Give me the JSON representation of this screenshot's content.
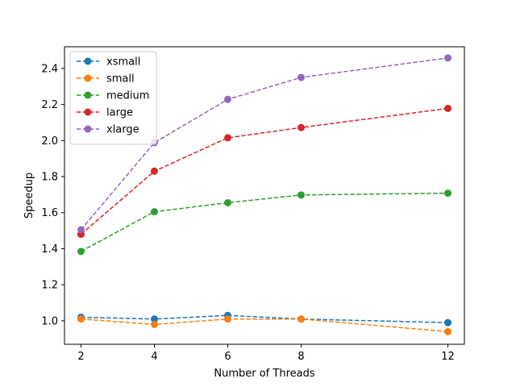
{
  "chart_data": {
    "type": "line",
    "title": "",
    "xlabel": "Number of Threads",
    "ylabel": "Speedup",
    "x": [
      2,
      4,
      6,
      8,
      12
    ],
    "x_tick_labels": [
      "2",
      "4",
      "6",
      "8",
      "12"
    ],
    "y_ticks": [
      1.0,
      1.2,
      1.4,
      1.6,
      1.8,
      2.0,
      2.2,
      2.4
    ],
    "y_tick_labels": [
      "1.0",
      "1.2",
      "1.4",
      "1.6",
      "1.8",
      "2.0",
      "2.2",
      "2.4"
    ],
    "ylim": [
      0.87,
      2.52
    ],
    "grid": false,
    "legend_position": "top-left",
    "line_style": "dashed",
    "marker": "circle",
    "series": [
      {
        "name": "xsmall",
        "color": "#1f77b4",
        "values": [
          1.02,
          1.01,
          1.03,
          1.01,
          0.99
        ]
      },
      {
        "name": "small",
        "color": "#ff7f0e",
        "values": [
          1.01,
          0.98,
          1.01,
          1.01,
          0.94
        ]
      },
      {
        "name": "medium",
        "color": "#2ca02c",
        "values": [
          1.385,
          1.605,
          1.655,
          1.698,
          1.708
        ]
      },
      {
        "name": "large",
        "color": "#d62728",
        "values": [
          1.48,
          1.83,
          2.015,
          2.072,
          2.178
        ]
      },
      {
        "name": "xlarge",
        "color": "#9467bd",
        "values": [
          1.505,
          1.988,
          2.228,
          2.35,
          2.458
        ]
      }
    ]
  }
}
